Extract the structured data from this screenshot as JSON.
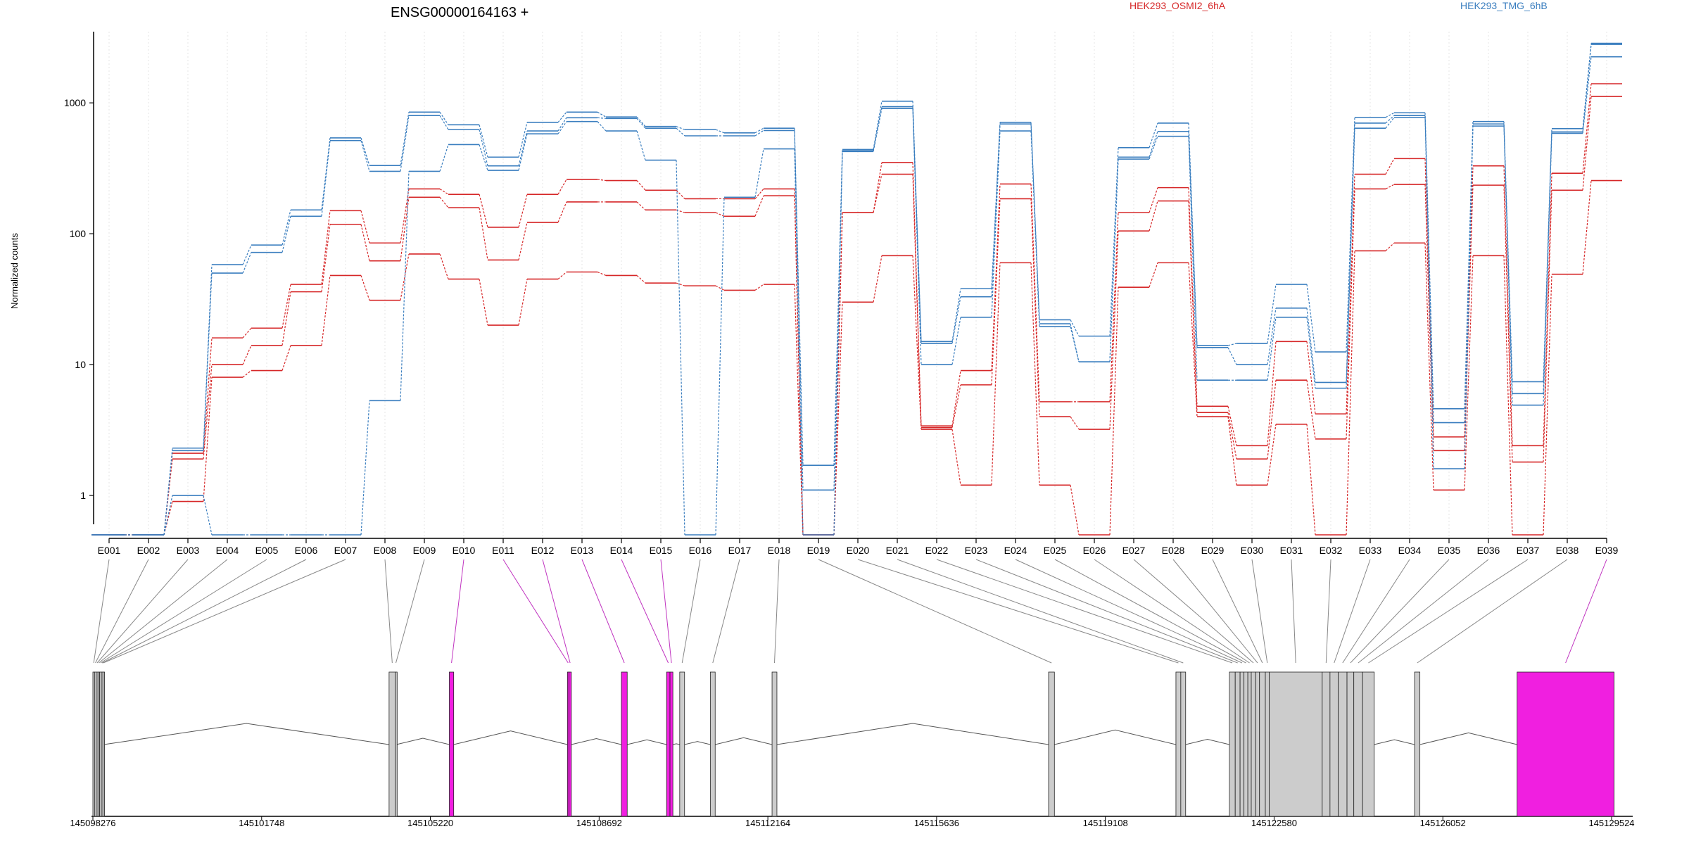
{
  "chart_data": {
    "type": "line",
    "title": "ENSG00000164163 +",
    "ylabel": "Normalized counts",
    "xlabel": "",
    "yscale": "log",
    "ylim": [
      0.5,
      3500
    ],
    "yticks": [
      "1",
      "10",
      "100",
      "1000"
    ],
    "grid": "vertical dotted lines at each exon bin",
    "categories": [
      "E001",
      "E002",
      "E003",
      "E004",
      "E005",
      "E006",
      "E007",
      "E008",
      "E009",
      "E010",
      "E011",
      "E012",
      "E013",
      "E014",
      "E015",
      "E016",
      "E017",
      "E018",
      "E019",
      "E020",
      "E021",
      "E022",
      "E023",
      "E024",
      "E025",
      "E026",
      "E027",
      "E028",
      "E029",
      "E030",
      "E031",
      "E032",
      "E033",
      "E034",
      "E035",
      "E036",
      "E037",
      "E038",
      "E039"
    ],
    "legend": [
      {
        "label": "HEK293_OSMI2_6hA",
        "color": "#d62728"
      },
      {
        "label": "HEK293_TMG_6hB",
        "color": "#3a7ebf"
      }
    ],
    "series": [
      {
        "group": "HEK293_OSMI2_6hA",
        "color": "#d62728",
        "values": [
          0.5,
          0.5,
          2.1,
          16,
          19,
          41,
          150,
          85,
          220,
          200,
          112,
          200,
          260,
          255,
          215,
          185,
          185,
          220,
          0.5,
          145,
          350,
          3.4,
          9,
          240,
          5.2,
          5.2,
          145,
          225,
          4.8,
          2.4,
          15,
          4.2,
          285,
          375,
          2.8,
          330,
          2.4,
          290,
          1400
        ]
      },
      {
        "group": "HEK293_OSMI2_6hA",
        "color": "#d62728",
        "values": [
          0.5,
          0.5,
          1.9,
          10,
          14,
          36,
          118,
          62,
          190,
          158,
          63,
          122,
          175,
          175,
          152,
          145,
          136,
          195,
          0.5,
          145,
          285,
          3.3,
          7,
          185,
          4,
          3.2,
          105,
          178,
          4.3,
          1.9,
          7.6,
          2.7,
          220,
          238,
          2.2,
          235,
          1.8,
          215,
          1120
        ]
      },
      {
        "group": "HEK293_OSMI2_6hA",
        "color": "#d62728",
        "values": [
          0.5,
          0.5,
          0.9,
          8,
          9,
          14,
          48,
          31,
          70,
          45,
          20,
          45,
          51,
          48,
          42,
          40,
          37,
          41,
          0.5,
          30,
          68,
          3.2,
          1.2,
          60,
          1.2,
          0.5,
          39,
          60,
          4,
          1.2,
          3.5,
          0.5,
          74,
          85,
          1.1,
          68,
          0.5,
          49,
          255
        ]
      },
      {
        "group": "HEK293_TMG_6hB",
        "color": "#3a7ebf",
        "values": [
          0.5,
          0.5,
          2.3,
          58,
          82,
          152,
          540,
          332,
          850,
          680,
          385,
          710,
          850,
          780,
          660,
          625,
          590,
          640,
          1.7,
          440,
          1030,
          15,
          38,
          710,
          22,
          16.5,
          455,
          700,
          14,
          14.5,
          41,
          12.5,
          775,
          840,
          4.6,
          720,
          7.4,
          635,
          2850
        ]
      },
      {
        "group": "HEK293_TMG_6hB",
        "color": "#3a7ebf",
        "values": [
          0.5,
          0.5,
          2.2,
          50,
          72,
          136,
          515,
          300,
          800,
          625,
          330,
          610,
          770,
          760,
          640,
          560,
          560,
          615,
          1.1,
          430,
          935,
          14.5,
          33,
          690,
          20.5,
          10.5,
          385,
          605,
          13.5,
          10,
          27,
          7.3,
          700,
          800,
          3.6,
          690,
          6,
          600,
          2800
        ]
      },
      {
        "group": "HEK293_TMG_6hB",
        "color": "#3a7ebf",
        "values": [
          0.5,
          0.5,
          1,
          0.5,
          0.5,
          0.5,
          0.5,
          5.3,
          300,
          480,
          305,
          580,
          720,
          610,
          365,
          0.5,
          190,
          445,
          0.5,
          425,
          905,
          10,
          23,
          610,
          19.5,
          10.5,
          372,
          555,
          7.6,
          7.6,
          23,
          6.6,
          640,
          775,
          1.6,
          665,
          4.9,
          585,
          2250
        ]
      }
    ]
  },
  "gene_model": {
    "coordinate_ticks": [
      "145098276",
      "145101748",
      "145105220",
      "145108692",
      "145112164",
      "145115636",
      "145119108",
      "145122580",
      "145126052",
      "145129524"
    ],
    "exon_bins": [
      {
        "start": 145098276,
        "end": 145098310,
        "highlight": false
      },
      {
        "start": 145098310,
        "end": 145098345,
        "highlight": false
      },
      {
        "start": 145098345,
        "end": 145098380,
        "highlight": false
      },
      {
        "start": 145098380,
        "end": 145098415,
        "highlight": false
      },
      {
        "start": 145098415,
        "end": 145098450,
        "highlight": false
      },
      {
        "start": 145098450,
        "end": 145098480,
        "highlight": false
      },
      {
        "start": 145098480,
        "end": 145098500,
        "highlight": false
      },
      {
        "start": 145104370,
        "end": 145104500,
        "highlight": false
      },
      {
        "start": 145104500,
        "end": 145104520,
        "highlight": false
      },
      {
        "start": 145105610,
        "end": 145105700,
        "highlight": true
      },
      {
        "start": 145108040,
        "end": 145108070,
        "highlight": true
      },
      {
        "start": 145108070,
        "end": 145108120,
        "highlight": true
      },
      {
        "start": 145109150,
        "end": 145109270,
        "highlight": true
      },
      {
        "start": 145110080,
        "end": 145110150,
        "highlight": true
      },
      {
        "start": 145110150,
        "end": 145110210,
        "highlight": true
      },
      {
        "start": 145110350,
        "end": 145110450,
        "highlight": false
      },
      {
        "start": 145110980,
        "end": 145111080,
        "highlight": false
      },
      {
        "start": 145112250,
        "end": 145112350,
        "highlight": false
      },
      {
        "start": 145117940,
        "end": 145118060,
        "highlight": false
      },
      {
        "start": 145120560,
        "end": 145120660,
        "highlight": false
      },
      {
        "start": 145120660,
        "end": 145120760,
        "highlight": false
      },
      {
        "start": 145121660,
        "end": 145121780,
        "highlight": false
      },
      {
        "start": 145121780,
        "end": 145121880,
        "highlight": false
      },
      {
        "start": 145121880,
        "end": 145121960,
        "highlight": false
      },
      {
        "start": 145121960,
        "end": 145122040,
        "highlight": false
      },
      {
        "start": 145122040,
        "end": 145122110,
        "highlight": false
      },
      {
        "start": 145122110,
        "end": 145122200,
        "highlight": false
      },
      {
        "start": 145122200,
        "end": 145122280,
        "highlight": false
      },
      {
        "start": 145122280,
        "end": 145122400,
        "highlight": false
      },
      {
        "start": 145122400,
        "end": 145122480,
        "highlight": false
      },
      {
        "start": 145122480,
        "end": 145123570,
        "highlight": false
      },
      {
        "start": 145123570,
        "end": 145123730,
        "highlight": false
      },
      {
        "start": 145123730,
        "end": 145123900,
        "highlight": false
      },
      {
        "start": 145123900,
        "end": 145124080,
        "highlight": false
      },
      {
        "start": 145124080,
        "end": 145124220,
        "highlight": false
      },
      {
        "start": 145124220,
        "end": 145124400,
        "highlight": false
      },
      {
        "start": 145124400,
        "end": 145124640,
        "highlight": false
      },
      {
        "start": 145125470,
        "end": 145125580,
        "highlight": false
      },
      {
        "start": 145127580,
        "end": 145129575,
        "highlight": true
      }
    ]
  }
}
